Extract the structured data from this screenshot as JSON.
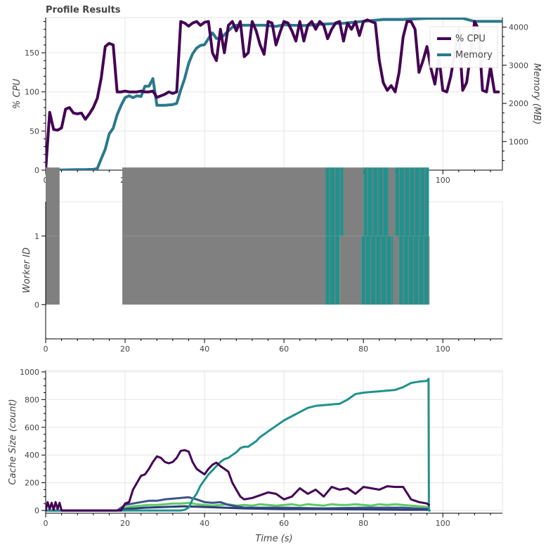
{
  "title": "Profile Results",
  "colors": {
    "cpu": "#440154",
    "memory": "#2a788e",
    "worker_busy": "#808080",
    "worker_alt": "#21918c",
    "cache_series": [
      "#440154",
      "#3b528b",
      "#21918c",
      "#5ec962",
      "#2c3e7a"
    ]
  },
  "chart_data": [
    {
      "type": "line",
      "name": "cpu-memory",
      "xlabel": "",
      "ylabel": "% CPU",
      "y2label": "Memory (MB)",
      "xlim": [
        0,
        115
      ],
      "ylim": [
        0,
        195
      ],
      "y2lim": [
        250,
        4250
      ],
      "xticks": [
        0,
        20,
        40,
        60,
        80,
        100
      ],
      "yticks": [
        0,
        50,
        100,
        150
      ],
      "y2ticks": [
        1000,
        2000,
        3000,
        4000
      ],
      "grid": true,
      "legend": "top-right",
      "series": [
        {
          "name": "% CPU",
          "axis": "left",
          "x": [
            0,
            1,
            2,
            3,
            4,
            5,
            6,
            7,
            8,
            9,
            10,
            11,
            12,
            13,
            14,
            15,
            16,
            17,
            18,
            19,
            20,
            21,
            22,
            23,
            24,
            25,
            26,
            27,
            28,
            29,
            30,
            31,
            32,
            33,
            34,
            35,
            36,
            37,
            38,
            39,
            40,
            41,
            42,
            43,
            44,
            45,
            46,
            47,
            48,
            49,
            50,
            51,
            52,
            53,
            54,
            55,
            56,
            57,
            58,
            59,
            60,
            61,
            62,
            63,
            64,
            65,
            66,
            67,
            68,
            69,
            70,
            71,
            72,
            73,
            74,
            75,
            76,
            77,
            78,
            79,
            80,
            81,
            82,
            83,
            84,
            85,
            86,
            87,
            88,
            89,
            90,
            91,
            92,
            93,
            94,
            95,
            96,
            97,
            98,
            99,
            100,
            101,
            102,
            103,
            104,
            105,
            106,
            107,
            108,
            109,
            110,
            111,
            112,
            113,
            114
          ],
          "values": [
            0,
            74,
            52,
            51,
            54,
            78,
            80,
            73,
            72,
            73,
            65,
            72,
            80,
            92,
            118,
            158,
            162,
            160,
            100,
            100,
            101,
            100,
            100,
            100,
            101,
            100,
            100,
            101,
            93,
            95,
            97,
            100,
            98,
            100,
            190,
            188,
            184,
            188,
            190,
            185,
            189,
            190,
            150,
            140,
            180,
            150,
            185,
            190,
            178,
            190,
            145,
            150,
            190,
            178,
            160,
            148,
            190,
            188,
            160,
            176,
            190,
            188,
            178,
            165,
            190,
            165,
            185,
            190,
            180,
            190,
            185,
            168,
            180,
            188,
            190,
            165,
            188,
            180,
            190,
            172,
            190,
            192,
            190,
            188,
            140,
            112,
            102,
            108,
            100,
            125,
            170,
            190,
            190,
            180,
            125,
            140,
            158,
            130,
            110,
            145,
            102,
            100,
            120,
            150,
            180,
            102,
            112,
            150,
            190,
            180,
            102,
            100,
            132,
            100,
            100
          ]
        },
        {
          "name": "Memory",
          "axis": "right",
          "x": [
            0,
            2,
            4,
            6,
            8,
            10,
            12,
            13,
            14,
            15,
            16,
            17,
            18,
            19,
            20,
            21,
            22,
            23,
            24,
            25,
            26,
            27,
            28,
            30,
            32,
            33,
            34,
            35,
            36,
            37,
            38,
            39,
            40,
            41,
            42,
            43,
            44,
            45,
            46,
            47,
            48,
            50,
            52,
            55,
            58,
            60,
            62,
            65,
            70,
            75,
            80,
            85,
            90,
            96,
            100,
            105,
            108,
            110,
            112,
            115
          ],
          "values": [
            250,
            252,
            255,
            260,
            262,
            265,
            270,
            290,
            550,
            800,
            1200,
            1350,
            1700,
            1950,
            2150,
            2200,
            2150,
            2200,
            2180,
            2450,
            2450,
            2650,
            1950,
            1950,
            1970,
            2000,
            2350,
            2650,
            3050,
            3300,
            3450,
            3520,
            3540,
            3700,
            3850,
            3700,
            3700,
            3800,
            3900,
            4000,
            4050,
            4050,
            4050,
            4050,
            4020,
            4060,
            4050,
            4040,
            4080,
            4100,
            4150,
            4200,
            4200,
            4230,
            4230,
            4230,
            4150,
            4150,
            4150,
            4150
          ]
        }
      ]
    },
    {
      "type": "heatmap",
      "name": "worker-timeline",
      "xlabel": "",
      "ylabel": "Worker ID",
      "xlim": [
        0,
        115
      ],
      "ylim": [
        -0.5,
        1.5
      ],
      "xticks": [
        0,
        20,
        40,
        60,
        80,
        100
      ],
      "yticks": [
        0,
        1
      ],
      "grid": false,
      "rows": [
        {
          "worker": 0,
          "segments": [
            [
              0,
              3.5,
              "busy"
            ],
            [
              19.3,
              70.5,
              "busy"
            ],
            [
              70.5,
              74,
              "alt"
            ],
            [
              74,
              79.5,
              "busy"
            ],
            [
              79.5,
              87.5,
              "alt"
            ],
            [
              87.5,
              89,
              "busy"
            ],
            [
              89,
              96.5,
              "alt"
            ]
          ]
        },
        {
          "worker": 1,
          "segments": [
            [
              0,
              3.5,
              "busy"
            ],
            [
              19.3,
              70.5,
              "busy"
            ],
            [
              70.5,
              75,
              "alt"
            ],
            [
              75,
              80,
              "busy"
            ],
            [
              80,
              86.5,
              "alt"
            ],
            [
              86.5,
              88,
              "busy"
            ],
            [
              88,
              96.5,
              "alt"
            ]
          ]
        }
      ]
    },
    {
      "type": "line",
      "name": "cache-size",
      "xlabel": "Time (s)",
      "ylabel": "Cache Size (count)",
      "xlim": [
        0,
        115
      ],
      "ylim": [
        -20,
        1010
      ],
      "xticks": [
        0,
        20,
        40,
        60,
        80,
        100
      ],
      "yticks": [
        0,
        200,
        400,
        600,
        800,
        1000
      ],
      "grid": true,
      "series": [
        {
          "color_index": 0,
          "x": [
            0,
            0.5,
            1,
            1.5,
            2,
            2.5,
            3,
            3.5,
            4,
            19,
            20,
            21,
            22,
            23,
            24,
            25,
            26,
            27,
            28,
            29,
            30,
            31,
            32,
            33,
            34,
            35,
            36,
            37,
            38,
            39,
            40,
            41,
            42,
            43,
            44,
            45,
            46,
            47,
            48,
            49,
            50,
            52,
            54,
            56,
            58,
            60,
            62,
            64,
            66,
            68,
            70,
            72,
            74,
            76,
            78,
            80,
            82,
            84,
            86,
            88,
            90,
            92,
            94,
            96,
            96.5
          ],
          "values": [
            0,
            60,
            10,
            55,
            5,
            60,
            10,
            55,
            0,
            0,
            50,
            60,
            150,
            200,
            250,
            260,
            300,
            350,
            390,
            380,
            350,
            340,
            350,
            380,
            430,
            435,
            425,
            350,
            300,
            280,
            260,
            300,
            330,
            345,
            320,
            300,
            280,
            200,
            150,
            100,
            80,
            90,
            110,
            130,
            120,
            80,
            100,
            160,
            120,
            150,
            100,
            170,
            150,
            160,
            120,
            170,
            160,
            150,
            175,
            170,
            170,
            80,
            60,
            50,
            40
          ]
        },
        {
          "color_index": 1,
          "x": [
            0,
            18,
            20,
            22,
            24,
            26,
            28,
            30,
            32,
            34,
            36,
            38,
            40,
            42,
            44,
            46,
            48,
            50,
            60,
            70,
            80,
            90,
            96.5
          ],
          "values": [
            0,
            0,
            40,
            50,
            60,
            70,
            70,
            80,
            85,
            90,
            95,
            80,
            60,
            55,
            60,
            40,
            30,
            20,
            20,
            15,
            20,
            20,
            10
          ]
        },
        {
          "color_index": 2,
          "x": [
            0,
            18,
            20,
            25,
            30,
            32,
            34,
            35,
            36,
            37,
            38,
            39,
            40,
            41,
            42,
            43,
            44,
            45,
            46,
            47,
            48,
            49,
            50,
            51,
            52,
            53,
            54,
            55,
            56,
            58,
            60,
            62,
            64,
            66,
            68,
            70,
            72,
            74,
            76,
            78,
            80,
            82,
            84,
            86,
            88,
            90,
            92,
            94,
            96,
            96.4,
            96.5,
            96.6,
            96.7
          ],
          "values": [
            0,
            0,
            0,
            0,
            0,
            0,
            0,
            5,
            20,
            80,
            120,
            180,
            220,
            260,
            290,
            320,
            350,
            370,
            380,
            400,
            420,
            450,
            460,
            460,
            480,
            500,
            530,
            550,
            570,
            610,
            650,
            680,
            710,
            740,
            755,
            760,
            765,
            770,
            800,
            840,
            850,
            855,
            860,
            865,
            870,
            890,
            920,
            930,
            935,
            950,
            0,
            0,
            0
          ]
        },
        {
          "color_index": 3,
          "x": [
            0,
            18,
            20,
            22,
            24,
            26,
            28,
            30,
            32,
            34,
            36,
            38,
            40,
            42,
            44,
            46,
            48,
            50,
            52,
            54,
            56,
            58,
            60,
            62,
            64,
            66,
            68,
            70,
            72,
            74,
            76,
            78,
            80,
            82,
            84,
            86,
            88,
            90,
            92,
            94,
            96,
            96.5
          ],
          "values": [
            0,
            0,
            20,
            30,
            35,
            40,
            40,
            45,
            50,
            50,
            55,
            45,
            40,
            35,
            40,
            45,
            35,
            40,
            35,
            45,
            40,
            35,
            40,
            45,
            35,
            45,
            40,
            35,
            45,
            40,
            40,
            45,
            40,
            35,
            45,
            40,
            45,
            40,
            35,
            30,
            25,
            20
          ]
        },
        {
          "color_index": 4,
          "x": [
            0,
            18,
            20,
            25,
            30,
            35,
            40,
            45,
            50,
            60,
            70,
            80,
            90,
            96.5
          ],
          "values": [
            0,
            0,
            10,
            20,
            25,
            30,
            25,
            20,
            15,
            10,
            10,
            8,
            5,
            5
          ]
        }
      ]
    }
  ]
}
